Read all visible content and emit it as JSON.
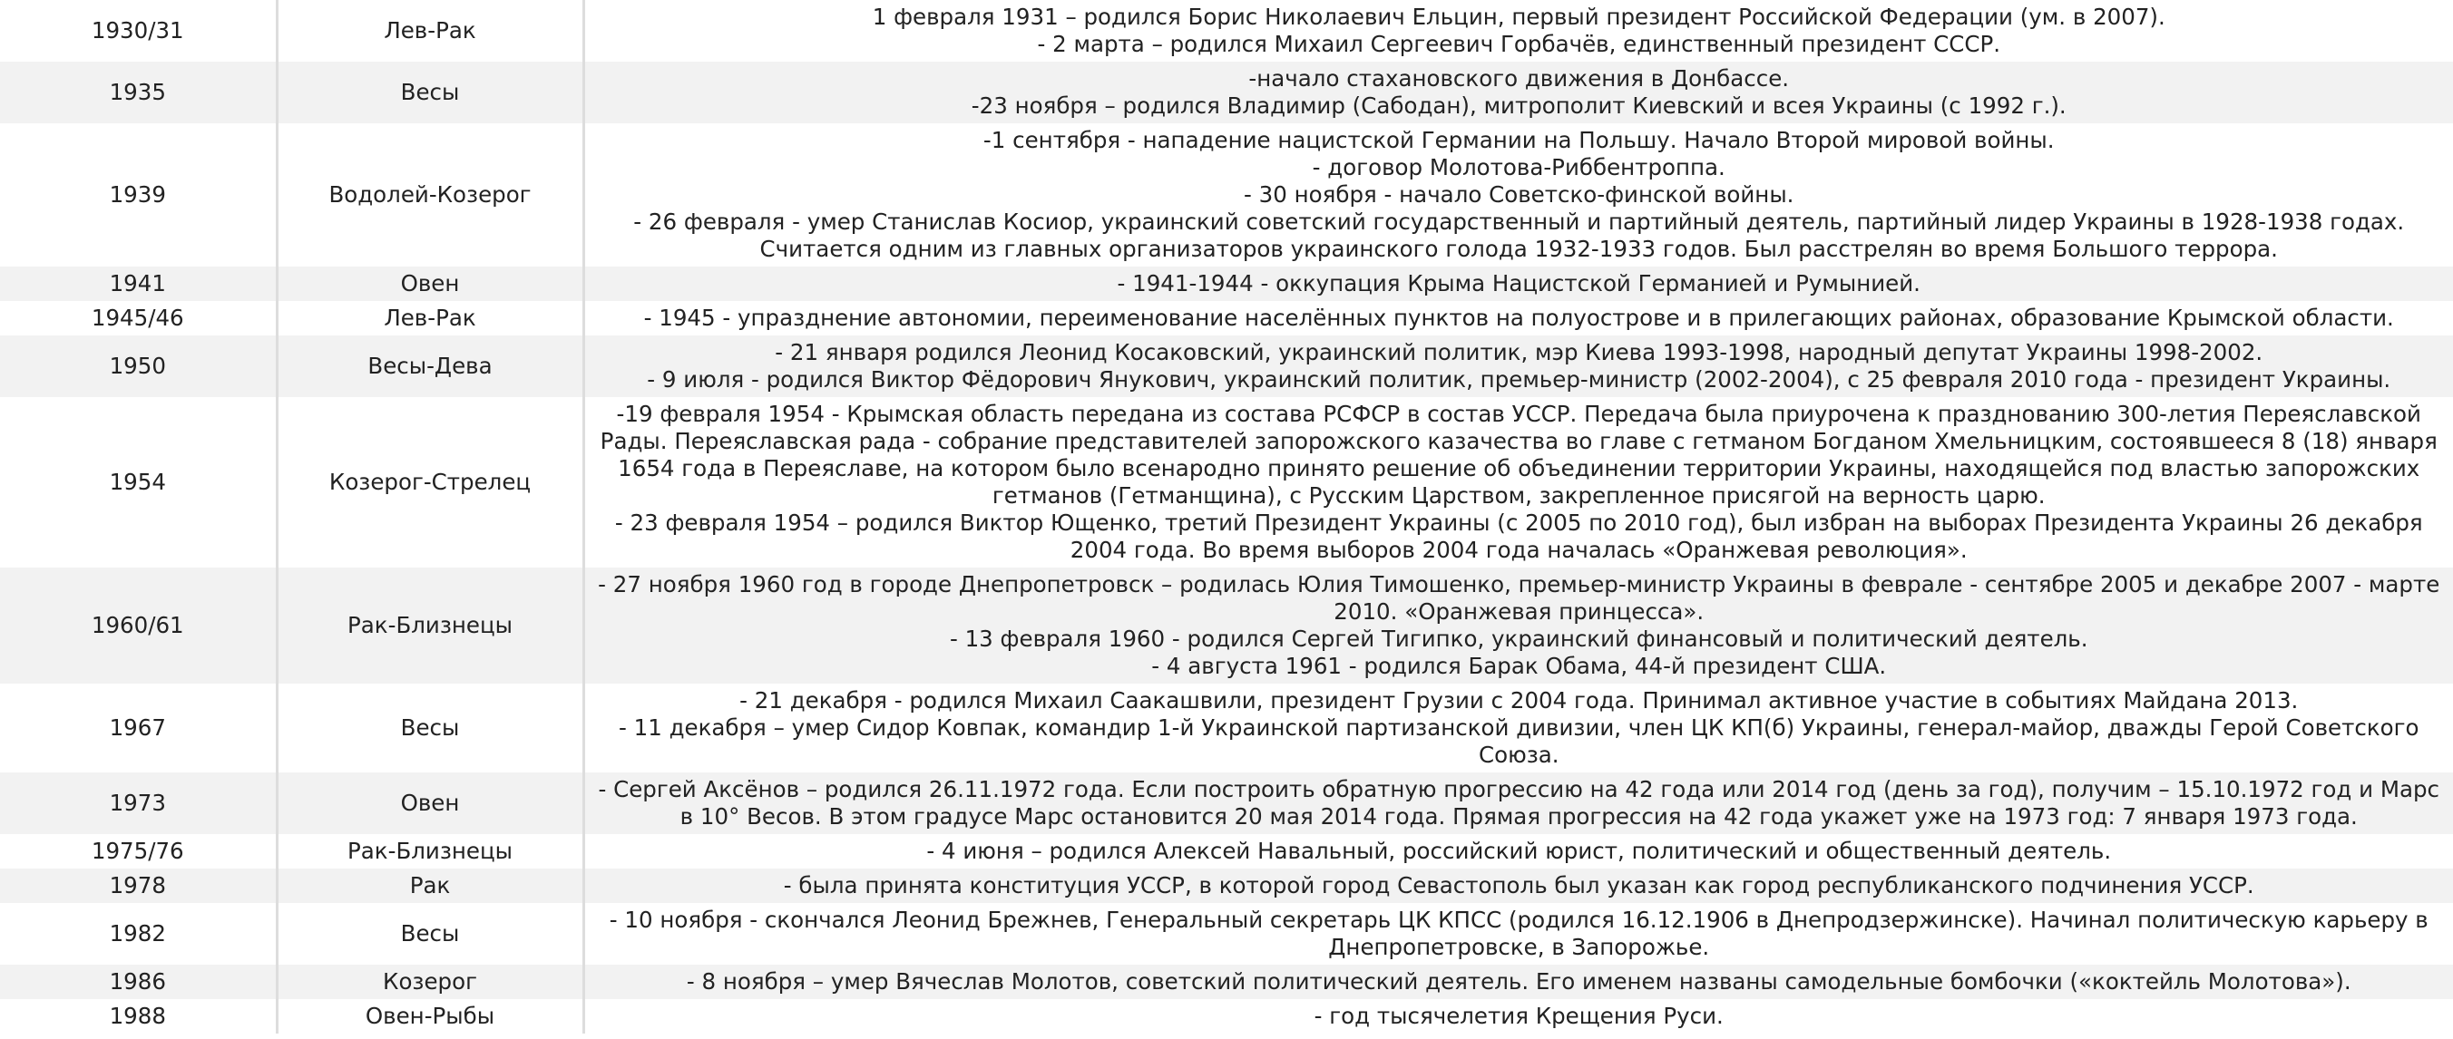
{
  "table": {
    "rows": [
      [
        "1930/31",
        "Лев-Рак",
        [
          "1 февраля 1931 – родился Борис Николаевич Ельцин, первый президент Российской Федерации (ум. в 2007).",
          "- 2 марта – родился Михаил Сергеевич Горбачёв, единственный президент СССР."
        ]
      ],
      [
        "1935",
        "Весы",
        [
          "-начало стахановского движения в Донбассе.",
          "-23 ноября – родился Владимир (Сабодан), митрополит Киевский и всея Украины (с 1992 г.)."
        ]
      ],
      [
        "1939",
        "Водолей-Козерог",
        [
          "-1 сентября - нападение нацистской Германии на Польшу. Начало Второй мировой войны.",
          "- договор Молотова-Риббентроппа.",
          "- 30 ноября - начало Советско-финской войны.",
          "- 26 февраля - умер Станислав Косиор, украинский советский государственный и партийный деятель, партийный лидер Украины в 1928-1938 годах. Считается одним из главных организаторов украинского голода 1932-1933 годов. Был расстрелян во время Большого террора."
        ]
      ],
      [
        "1941",
        "Овен",
        [
          "- 1941-1944 - оккупация Крыма Нацистской Германией и Румынией."
        ]
      ],
      [
        "1945/46",
        "Лев-Рак",
        [
          "- 1945 - упразднение автономии, переименование населённых пунктов на полуострове и в прилегающих районах, образование Крымской области."
        ]
      ],
      [
        "1950",
        "Весы-Дева",
        [
          "- 21 января родился Леонид Косаковский, украинский политик, мэр Киева 1993-1998, народный депутат Украины 1998-2002.",
          "- 9 июля - родился Виктор Фёдорович Янукович, украинский политик, премьер-министр (2002-2004), с 25 февраля 2010 года - президент Украины."
        ]
      ],
      [
        "1954",
        "Козерог-Стрелец",
        [
          "-19 февраля 1954 - Крымская область передана из состава РСФСР в состав УССР. Передача была приурочена к празднованию 300-летия Переяславской Рады. Переяславская рада - собрание представителей запорожского казачества во главе с гетманом Богданом Хмельницким, состоявшееся 8 (18) января 1654 года в Переяславе, на котором было всенародно принято решение об объединении территории Украины, находящейся под властью запорожских гетманов (Гетманщина), с Русским Царством, закрепленное присягой на верность царю.",
          "- 23 февраля 1954 – родился Виктор Ющенко, третий Президент Украины (с 2005 по 2010 год), был избран на выборах Президента Украины 26 декабря 2004 года. Во время выборов 2004 года началась «Оранжевая революция»."
        ]
      ],
      [
        "1960/61",
        "Рак-Близнецы",
        [
          "- 27 ноября 1960 год в городе Днепропетровск – родилась Юлия Тимошенко, премьер-министр Украины в феврале - сентябре 2005 и декабре 2007 - марте 2010. «Оранжевая принцесса».",
          "- 13 февраля 1960 - родился Сергей Тигипко, украинский финансовый и политический деятель.",
          "- 4 августа 1961 - родился Барак Обама, 44-й президент США."
        ]
      ],
      [
        "1967",
        "Весы",
        [
          "- 21 декабря - родился Михаил Саакашвили, президент Грузии с 2004 года. Принимал активное участие в событиях Майдана 2013.",
          "- 11 декабря – умер Сидор Ковпак, командир 1-й Украинской партизанской дивизии, член ЦК КП(б) Украины, генерал-майор, дважды Герой Советского Союза."
        ]
      ],
      [
        "1973",
        "Овен",
        [
          "- Сергей Аксёнов – родился 26.11.1972 года. Если построить обратную прогрессию на 42 года или 2014 год (день за год), получим – 15.10.1972 год и Марс в 10° Весов. В этом градусе Марс остановится 20 мая 2014 года. Прямая прогрессия на 42 года укажет уже на 1973 год: 7 января 1973 года."
        ]
      ],
      [
        "1975/76",
        "Рак-Близнецы",
        [
          "- 4 июня – родился Алексей Навальный, российский юрист, политический и общественный деятель."
        ]
      ],
      [
        "1978",
        "Рак",
        [
          "- была принята конституция УССР, в которой город Севастополь был указан как город республиканского подчинения УССР."
        ]
      ],
      [
        "1982",
        "Весы",
        [
          "- 10 ноября - скончался Леонид Брежнев, Генеральный секретарь ЦК КПСС (родился 16.12.1906 в Днепродзержинске). Начинал политическую карьеру в Днепропетровске, в Запорожье."
        ]
      ],
      [
        "1986",
        "Козерог",
        [
          "- 8 ноября – умер Вячеслав Молотов, советский политический деятель. Его именем названы самодельные бомбочки («коктейль Молотова»)."
        ]
      ],
      [
        "1988",
        "Овен-Рыбы",
        [
          "- год тысячелетия Крещения Руси."
        ]
      ]
    ]
  }
}
